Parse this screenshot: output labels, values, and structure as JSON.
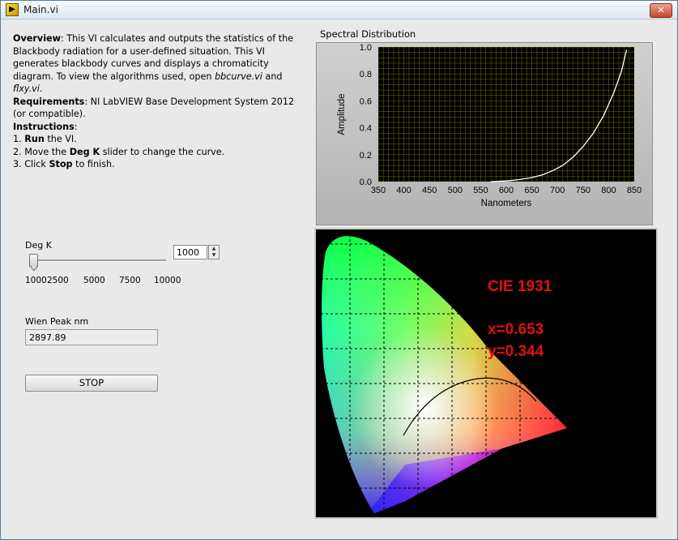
{
  "window": {
    "title": "Main.vi",
    "close_label": "✕"
  },
  "description": {
    "overview_label": "Overview",
    "overview_text": ": This VI calculates and outputs the statistics of the Blackbody radiation for a user-defined situation. This VI generates blackbody curves and displays a chromaticity diagram. To view the algorithms used, open ",
    "file1": "bbcurve.vi",
    "and_text": " and ",
    "file2": "flxy.vi",
    "period": ".",
    "requirements_label": "Requirements",
    "requirements_text": ": NI LabVIEW Base Development System 2012 (or compatible).",
    "instructions_label": "Instructions",
    "instructions_colon": ":",
    "step1_pre": "1. ",
    "step1_bold": "Run",
    "step1_post": " the VI.",
    "step2_pre": "2. Move the ",
    "step2_bold": "Deg K",
    "step2_post": " slider to change the curve.",
    "step3_pre": "3. Click ",
    "step3_bold": "Stop",
    "step3_post": " to finish."
  },
  "slider": {
    "label": "Deg K",
    "value": "1000",
    "ticks": [
      "1000",
      "2500",
      "5000",
      "7500",
      "10000"
    ]
  },
  "wien": {
    "label": "Wien Peak nm",
    "value": "2897.89"
  },
  "stop_button": {
    "label": "STOP"
  },
  "graph": {
    "title": "Spectral Distribution"
  },
  "chart_data": {
    "type": "line",
    "xlabel": "Nanometers",
    "ylabel": "Amplitude",
    "xlim": [
      350,
      850
    ],
    "ylim": [
      0,
      1
    ],
    "x_ticks": [
      "350",
      "400",
      "450",
      "500",
      "550",
      "600",
      "650",
      "700",
      "750",
      "800",
      "850"
    ],
    "y_ticks": [
      "0.0",
      "0.2",
      "0.4",
      "0.6",
      "0.8",
      "1.0"
    ],
    "grid": true,
    "line_color": "#ffffff",
    "grid_color": "#c8c800",
    "plot_bg": "#000000",
    "series": [
      {
        "x": [
          570,
          600,
          625,
          650,
          670,
          690,
          710,
          730,
          750,
          770,
          790,
          810,
          825,
          835
        ],
        "y": [
          0.0,
          0.005,
          0.015,
          0.03,
          0.05,
          0.08,
          0.12,
          0.18,
          0.26,
          0.36,
          0.49,
          0.66,
          0.82,
          0.98
        ]
      }
    ]
  },
  "cie": {
    "title": "CIE 1931",
    "x_text": "x=0.653",
    "y_text": "y=0.344",
    "text_color": "#e01010"
  }
}
